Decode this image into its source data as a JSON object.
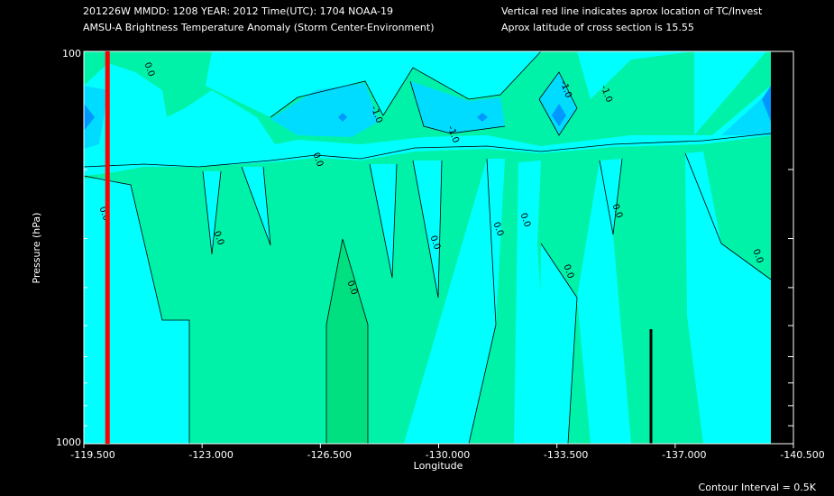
{
  "chart_data": {
    "type": "contour",
    "header_left": [
      "201226W  MMDD: 1208 YEAR: 2012 Time(UTC): 1704 NOAA-19",
      "AMSU-A Brightness Temperature Anomaly (Storm Center-Environment)"
    ],
    "header_right": [
      "Vertical red line indicates aprox location of TC/Invest",
      "Aprox latitude of cross section is 15.55"
    ],
    "xlabel": "Longitude",
    "ylabel": "Pressure (hPa)",
    "footer": "Contour Interval = 0.5K",
    "xlim": [
      -119.5,
      -140.5
    ],
    "xticks": [
      {
        "value": -119.5,
        "label": "-119.500"
      },
      {
        "value": -123,
        "label": "-123.000"
      },
      {
        "value": -126.5,
        "label": "-126.500"
      },
      {
        "value": -130,
        "label": "-130.000"
      },
      {
        "value": -133.5,
        "label": "-133.500"
      },
      {
        "value": -137,
        "label": "-137.000"
      },
      {
        "value": -140.5,
        "label": "-140.500"
      }
    ],
    "ylim": [
      1000,
      100
    ],
    "log_y": true,
    "yticks": [
      100,
      1000
    ],
    "yminor": [
      200,
      300,
      400,
      500,
      600,
      700,
      800,
      900
    ],
    "tc_longitude": -120.2,
    "tc_color": "#ff0000",
    "region_colors": [
      "#00ffff",
      "#00f2a8",
      "#00e080",
      "#00dcff",
      "#0098ff"
    ],
    "contour_labels": [
      {
        "value": 0,
        "label": "0.0"
      },
      {
        "value": -1,
        "label": "-1.0"
      },
      {
        "value": -1,
        "label": "-1.0"
      },
      {
        "value": 0,
        "label": "0.0"
      },
      {
        "value": -1,
        "label": "-1.0"
      },
      {
        "value": -1,
        "label": "-1.0"
      },
      {
        "value": 0,
        "label": "0.0"
      },
      {
        "value": 0,
        "label": "0.0"
      },
      {
        "value": 0,
        "label": "0.0"
      },
      {
        "value": 0,
        "label": "0.0"
      },
      {
        "value": 0,
        "label": "0.0"
      },
      {
        "value": 0,
        "label": "0.0"
      },
      {
        "value": 0,
        "label": "0.0"
      },
      {
        "value": 0,
        "label": "0.0"
      },
      {
        "value": 0,
        "label": "0.0"
      }
    ]
  }
}
